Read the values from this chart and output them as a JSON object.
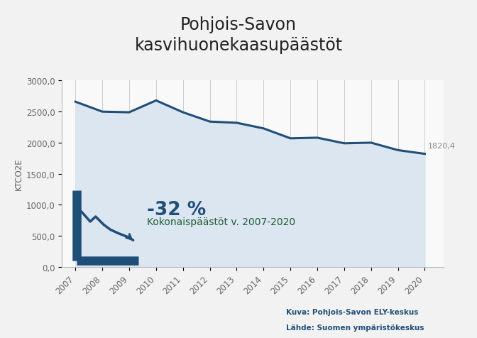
{
  "title": "Pohjois-Savon\nkasvihuonekaasupäästöt",
  "ylabel": "KTCO2E",
  "years": [
    2007,
    2008,
    2009,
    2010,
    2011,
    2012,
    2013,
    2014,
    2015,
    2016,
    2017,
    2018,
    2019,
    2020
  ],
  "values": [
    2660,
    2500,
    2490,
    2680,
    2490,
    2340,
    2320,
    2230,
    2070,
    2080,
    1990,
    2000,
    1880,
    1820.4
  ],
  "line_color": "#1f4e79",
  "fill_color": "#dce6f1",
  "background_color": "#f2f2f2",
  "chart_bg": "#f9f9f9",
  "ylim": [
    0,
    3000
  ],
  "yticks": [
    0,
    500,
    1000,
    1500,
    2000,
    2500,
    3000
  ],
  "ytick_labels": [
    "0,0",
    "500,0",
    "1000,0",
    "1500,0",
    "2000,0",
    "2500,0",
    "3000,0"
  ],
  "last_value_label": "1820,4",
  "annotation_pct": "-32 %",
  "annotation_text": "Kokonaispäästöt v. 2007-2020",
  "annotation_pct_color": "#1f4e79",
  "annotation_text_color": "#1e5c35",
  "footer_line1": "Kuva: Pohjois-Savon ELY-keskus",
  "footer_line2": "Lähde: Suomen ympäristökeskus",
  "footer_color": "#1f4e79",
  "footer_bg": "#111111",
  "title_fontsize": 17,
  "axis_fontsize": 8.5,
  "ylabel_fontsize": 8.5,
  "line_width": 2.2,
  "grid_color": "#cccccc",
  "icon_color": "#1f4e79"
}
